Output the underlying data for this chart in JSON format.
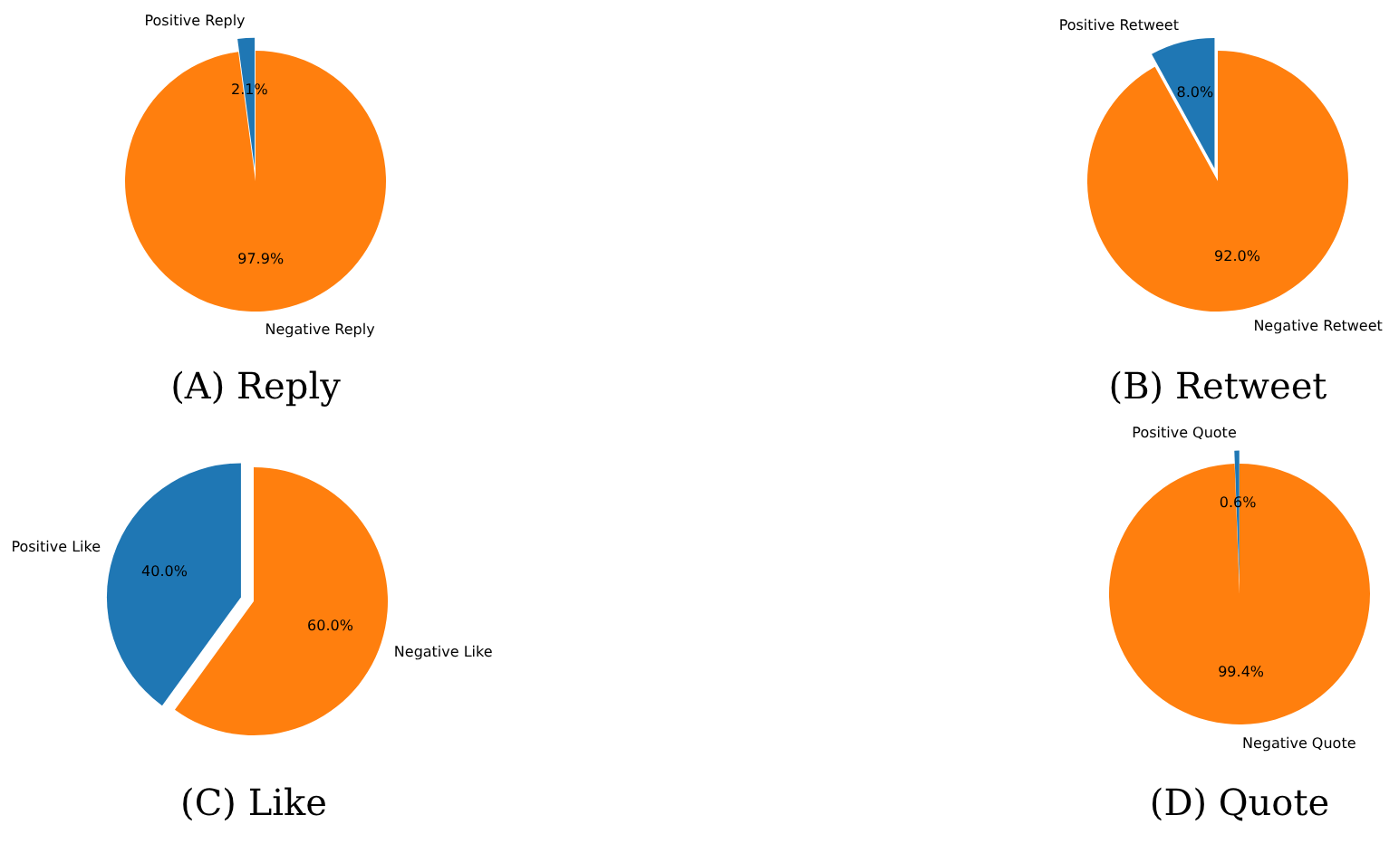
{
  "chart_data": [
    {
      "type": "pie",
      "title": "(A) Reply",
      "categories": [
        "Positive Reply",
        "Negative Reply"
      ],
      "values": [
        2.1,
        97.9
      ],
      "colors": [
        "#1f77b4",
        "#ff7f0e"
      ],
      "value_labels": [
        "2.1%",
        "97.9%"
      ]
    },
    {
      "type": "pie",
      "title": "(B) Retweet",
      "categories": [
        "Positive Retweet",
        "Negative Retweet"
      ],
      "values": [
        8.0,
        92.0
      ],
      "colors": [
        "#1f77b4",
        "#ff7f0e"
      ],
      "value_labels": [
        "8.0%",
        "92.0%"
      ]
    },
    {
      "type": "pie",
      "title": "(C) Like",
      "categories": [
        "Positive Like",
        "Negative Like"
      ],
      "values": [
        40.0,
        60.0
      ],
      "colors": [
        "#1f77b4",
        "#ff7f0e"
      ],
      "value_labels": [
        "40.0%",
        "60.0%"
      ]
    },
    {
      "type": "pie",
      "title": "(D) Quote",
      "categories": [
        "Positive Quote",
        "Negative Quote"
      ],
      "values": [
        0.6,
        99.4
      ],
      "colors": [
        "#1f77b4",
        "#ff7f0e"
      ],
      "value_labels": [
        "0.6%",
        "99.4%"
      ]
    }
  ]
}
